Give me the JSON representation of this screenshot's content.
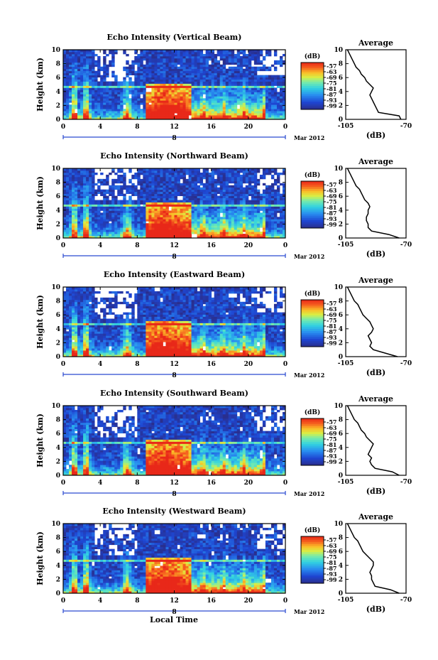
{
  "figure": {
    "xlabel": "Local Time",
    "date_label": "Mar 2012",
    "day_label": "8",
    "colorbar_unit": "(dB)",
    "colorbar_ticks": [
      "-57",
      "-63",
      "-69",
      "-75",
      "-81",
      "-87",
      "-93",
      "-99"
    ],
    "avg_title": "Average",
    "avg_xlabel": "(dB)",
    "avg_xticks": [
      "-105",
      "-70"
    ],
    "height_label": "Height (km)",
    "colors": {
      "low": "#2a3590",
      "mid": "#38c8e0",
      "high": "#e8301a",
      "axis": "#000000",
      "highlight": "#2a4ad0"
    }
  },
  "chart_data": [
    {
      "type": "heatmap",
      "title": "Echo Intensity (Vertical Beam)",
      "xlabel": "",
      "ylabel": "Height (km)",
      "x_ticks": [
        "0",
        "4",
        "8",
        "12",
        "16",
        "20",
        "0"
      ],
      "y_ticks": [
        "0",
        "2",
        "4",
        "6",
        "8",
        "10"
      ],
      "xlim": [
        0,
        24
      ],
      "ylim": [
        0,
        10
      ],
      "value_unit": "dB",
      "value_range": [
        -99,
        -57
      ],
      "average_profile": {
        "title": "Average",
        "xlabel": "(dB)",
        "xlim": [
          -105,
          -70
        ],
        "ylim": [
          0,
          10
        ],
        "height_km": [
          0,
          0.5,
          1,
          1.5,
          2,
          2.5,
          3,
          3.5,
          4,
          4.5,
          5,
          5.5,
          6,
          6.5,
          7,
          7.5,
          8,
          8.5,
          9,
          9.5,
          10
        ],
        "db": [
          -73,
          -74,
          -86,
          -87,
          -88,
          -89,
          -90,
          -91,
          -90,
          -89,
          -91,
          -93,
          -94,
          -96,
          -97,
          -99,
          -100,
          -101,
          -102,
          -103,
          -104
        ]
      }
    },
    {
      "type": "heatmap",
      "title": "Echo Intensity (Northward Beam)",
      "xlabel": "",
      "ylabel": "Height (km)",
      "x_ticks": [
        "0",
        "4",
        "8",
        "12",
        "16",
        "20",
        "0"
      ],
      "y_ticks": [
        "0",
        "2",
        "4",
        "6",
        "8",
        "10"
      ],
      "xlim": [
        0,
        24
      ],
      "ylim": [
        0,
        10
      ],
      "value_unit": "dB",
      "value_range": [
        -99,
        -57
      ],
      "average_profile": {
        "title": "Average",
        "xlabel": "(dB)",
        "xlim": [
          -105,
          -70
        ],
        "ylim": [
          0,
          10
        ],
        "height_km": [
          0,
          0.5,
          1,
          1.5,
          2,
          2.5,
          3,
          3.5,
          4,
          4.5,
          5,
          5.5,
          6,
          6.5,
          7,
          7.5,
          8,
          8.5,
          9,
          9.5,
          10
        ],
        "db": [
          -74,
          -80,
          -90,
          -92,
          -92,
          -93,
          -93,
          -92,
          -92,
          -91,
          -92,
          -94,
          -95,
          -96,
          -97,
          -99,
          -100,
          -101,
          -102,
          -103,
          -104
        ]
      }
    },
    {
      "type": "heatmap",
      "title": "Echo Intensity (Eastward Beam)",
      "xlabel": "",
      "ylabel": "Height (km)",
      "x_ticks": [
        "0",
        "4",
        "8",
        "12",
        "16",
        "20",
        "0"
      ],
      "y_ticks": [
        "0",
        "2",
        "4",
        "6",
        "8",
        "10"
      ],
      "xlim": [
        0,
        24
      ],
      "ylim": [
        0,
        10
      ],
      "value_unit": "dB",
      "value_range": [
        -99,
        -57
      ],
      "average_profile": {
        "title": "Average",
        "xlabel": "(dB)",
        "xlim": [
          -105,
          -70
        ],
        "ylim": [
          0,
          10
        ],
        "height_km": [
          0,
          0.5,
          1,
          1.5,
          2,
          2.5,
          3,
          3.5,
          4,
          4.5,
          5,
          5.5,
          6,
          6.5,
          7,
          7.5,
          8,
          8.5,
          9,
          9.5,
          10
        ],
        "db": [
          -75,
          -82,
          -89,
          -91,
          -90,
          -91,
          -92,
          -90,
          -89,
          -90,
          -91,
          -93,
          -95,
          -96,
          -97,
          -98,
          -100,
          -101,
          -102,
          -103,
          -104
        ]
      }
    },
    {
      "type": "heatmap",
      "title": "Echo Intensity (Southward Beam)",
      "xlabel": "",
      "ylabel": "Height (km)",
      "x_ticks": [
        "0",
        "4",
        "8",
        "12",
        "16",
        "20",
        "0"
      ],
      "y_ticks": [
        "0",
        "2",
        "4",
        "6",
        "8",
        "10"
      ],
      "xlim": [
        0,
        24
      ],
      "ylim": [
        0,
        10
      ],
      "value_unit": "dB",
      "value_range": [
        -99,
        -57
      ],
      "average_profile": {
        "title": "Average",
        "xlabel": "(dB)",
        "xlim": [
          -105,
          -70
        ],
        "ylim": [
          0,
          10
        ],
        "height_km": [
          0,
          0.5,
          1,
          1.5,
          2,
          2.5,
          3,
          3.5,
          4,
          4.5,
          5,
          5.5,
          6,
          6.5,
          7,
          7.5,
          8,
          8.5,
          9,
          9.5,
          10
        ],
        "db": [
          -74,
          -78,
          -88,
          -90,
          -91,
          -90,
          -92,
          -91,
          -90,
          -89,
          -91,
          -93,
          -94,
          -96,
          -97,
          -98,
          -100,
          -101,
          -102,
          -103,
          -104
        ]
      }
    },
    {
      "type": "heatmap",
      "title": "Echo Intensity (Westward Beam)",
      "xlabel": "Local Time",
      "ylabel": "Height (km)",
      "x_ticks": [
        "0",
        "4",
        "8",
        "12",
        "16",
        "20",
        "0"
      ],
      "y_ticks": [
        "0",
        "2",
        "4",
        "6",
        "8",
        "10"
      ],
      "xlim": [
        0,
        24
      ],
      "ylim": [
        0,
        10
      ],
      "value_unit": "dB",
      "value_range": [
        -99,
        -57
      ],
      "average_profile": {
        "title": "Average",
        "xlabel": "(dB)",
        "xlim": [
          -105,
          -70
        ],
        "ylim": [
          0,
          10
        ],
        "height_km": [
          0,
          0.5,
          1,
          1.5,
          2,
          2.5,
          3,
          3.5,
          4,
          4.5,
          5,
          5.5,
          6,
          6.5,
          7,
          7.5,
          8,
          8.5,
          9,
          9.5,
          10
        ],
        "db": [
          -74,
          -79,
          -88,
          -89,
          -90,
          -90,
          -91,
          -90,
          -89,
          -89,
          -91,
          -93,
          -95,
          -96,
          -97,
          -98,
          -100,
          -101,
          -102,
          -103,
          -104
        ]
      }
    }
  ]
}
